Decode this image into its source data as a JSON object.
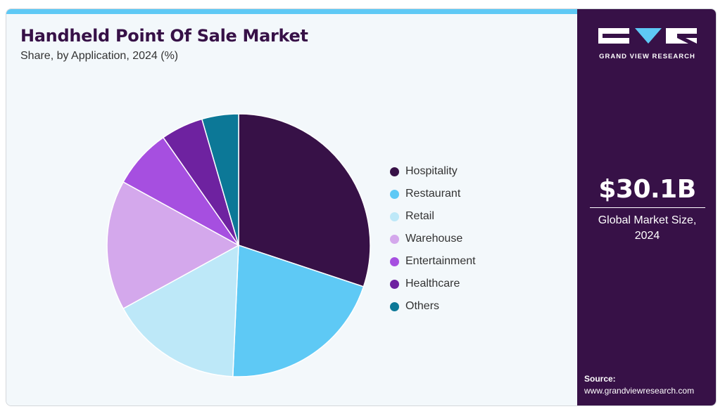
{
  "title": "Handheld Point Of Sale Market",
  "subtitle": "Share, by Application, 2024 (%)",
  "chart_data": {
    "type": "pie",
    "title": "Handheld Point Of Sale Market",
    "subtitle": "Share, by Application, 2024 (%)",
    "legend_position": "right",
    "start_angle": "12 o'clock",
    "direction": "clockwise",
    "categories": [
      "Hospitality",
      "Restaurant",
      "Retail",
      "Warehouse",
      "Entertainment",
      "Healthcare",
      "Others"
    ],
    "values": [
      30.1,
      20.6,
      16.3,
      16.0,
      7.3,
      5.2,
      4.5
    ],
    "colors": [
      "#371147",
      "#5ec9f5",
      "#bde8f8",
      "#d4a8ec",
      "#a64fe0",
      "#6e22a0",
      "#0c7897"
    ]
  },
  "sidebar": {
    "logo_text": "GRAND VIEW RESEARCH",
    "market_value": "$30.1B",
    "market_label": "Global Market Size, 2024",
    "source_title": "Source:",
    "source_url": "www.grandviewresearch.com"
  }
}
